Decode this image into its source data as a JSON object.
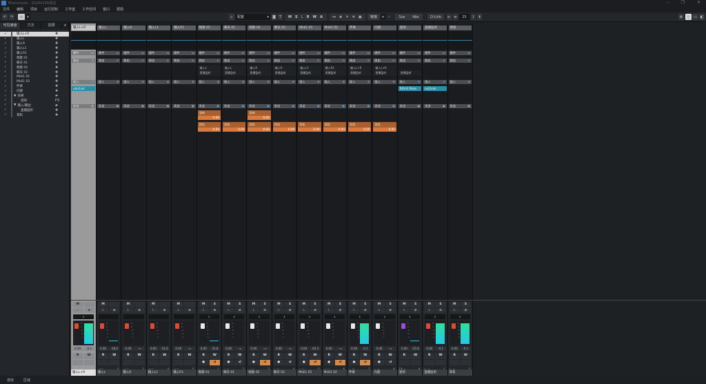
{
  "window": {
    "title": "MixConsole - 20260109测试",
    "controls": [
      "minimize",
      "maximize",
      "close"
    ]
  },
  "menu": [
    "文件",
    "编辑",
    "项目",
    "运行控制",
    "工作室",
    "工作空间",
    "窗口",
    "帮助"
  ],
  "toolbar": {
    "search_field": "配置",
    "ms_buttons": [
      "M",
      "S",
      "L",
      "R",
      "W",
      "A"
    ],
    "route_label": "链接",
    "sus": "Sus",
    "abs": "Abs",
    "qlink": "Q-Link",
    "zoom_value": "25"
  },
  "sidebar": {
    "tabs": [
      "可见通道",
      "方法",
      "插槽"
    ],
    "items": [
      {
        "label": "输入L+R",
        "selected": true,
        "icon": "input"
      },
      {
        "label": "输入L",
        "icon": "input"
      },
      {
        "label": "输入R",
        "icon": "input"
      },
      {
        "label": "输入L1",
        "icon": "input"
      },
      {
        "label": "输入R1",
        "icon": "input"
      },
      {
        "label": "唱歌 01",
        "icon": "input"
      },
      {
        "label": "聊天 01",
        "icon": "input"
      },
      {
        "label": "唱歌 02",
        "icon": "input"
      },
      {
        "label": "聊天 02",
        "icon": "input"
      },
      {
        "label": "Midi1 01",
        "icon": "input"
      },
      {
        "label": "Midi1 02",
        "icon": "input"
      },
      {
        "label": "伴奏",
        "icon": "input"
      },
      {
        "label": "闪避",
        "icon": "input"
      },
      {
        "label": "效果",
        "icon": "folder",
        "group": true
      },
      {
        "label": "混响",
        "icon": "FX",
        "indent": true
      },
      {
        "label": "输入/输出",
        "icon": "folder",
        "group": true
      },
      {
        "label": "直播监听",
        "icon": "input",
        "indent": true
      },
      {
        "label": "耳机",
        "icon": "input"
      }
    ],
    "bottom_tabs": [
      "通道",
      "区域"
    ]
  },
  "mixer": {
    "master_labels": {
      "hardware": "硬件",
      "route": "路由",
      "insert": "插入",
      "send": "发送"
    },
    "strips": [
      {
        "name": "输入L+R",
        "master": true,
        "plugin": "vdn2vst",
        "fader": "0.00",
        "meter": "-0.1",
        "cap": "#e04a33",
        "meter_full": true,
        "num": "1",
        "foot": "⊣ ∞"
      },
      {
        "name": "输入L",
        "fader": "0.00",
        "meter": "-28.0",
        "cap": "#e04a33",
        "line": true,
        "num": "2",
        "foot": "⊣ ○"
      },
      {
        "name": "输入R",
        "fader": "0.00",
        "meter": "-∞",
        "cap": "#e04a33",
        "num": "3",
        "foot": "⊣ ○"
      },
      {
        "name": "输入L1",
        "fader": "0.00",
        "meter": "-52.6",
        "cap": "#e04a33",
        "num": "4",
        "foot": "⊣ ○"
      },
      {
        "name": "输入R1",
        "fader": "0.00",
        "meter": "-∞",
        "cap": "#e04a33",
        "num": "5",
        "foot": "⊣ ○"
      },
      {
        "name": "唱歌 01",
        "io_in": "输入L",
        "io_out": "直播监听",
        "fader": "0.00",
        "meter": "-31.8",
        "cap": "#e8e8e8",
        "line": true,
        "write_on": true,
        "sends": [
          {
            "name": "混响",
            "value": "0.00"
          },
          {
            "name": "耳机",
            "value": "0.00"
          }
        ],
        "num": "1",
        "foot": "⊥ ○"
      },
      {
        "name": "聊天 01",
        "io_in": "输入L",
        "io_out": "直播监听",
        "fader": "0.00",
        "meter": "-∞",
        "cap": "#e8e8e8",
        "sends": [
          {
            "name": "耳机",
            "value": "0.00"
          }
        ],
        "num": "2",
        "foot": "⊥ ○"
      },
      {
        "name": "唱歌 02",
        "io_in": "输入R",
        "io_out": "直播监听",
        "fader": "0.00",
        "meter": "-∞",
        "cap": "#e8e8e8",
        "write_on": true,
        "sends": [
          {
            "name": "混响",
            "value": "0.00"
          },
          {
            "name": "耳机",
            "value": "0.00"
          }
        ],
        "num": "3",
        "foot": "⊥ ○"
      },
      {
        "name": "聊天 02",
        "io_in": "输入R",
        "io_out": "直播监听",
        "fader": "0.00",
        "meter": "-∞",
        "cap": "#e8e8e8",
        "sends": [
          {
            "name": "耳机",
            "value": "0.00"
          }
        ],
        "num": "4",
        "foot": "⊥ ○"
      },
      {
        "name": "Midi1 01",
        "io_in": "输入L1",
        "io_out": "直播监听",
        "fader": "0.00",
        "meter": "-62.5",
        "cap": "#e8e8e8",
        "write_on": true,
        "sends": [
          {
            "name": "耳机",
            "value": "0.00"
          }
        ],
        "num": "5",
        "foot": "⊥ ○"
      },
      {
        "name": "Midi1 02",
        "io_in": "输入R1",
        "io_out": "直播监听",
        "fader": "0.00",
        "meter": "-∞",
        "cap": "#e8e8e8",
        "write_on": true,
        "sends": [
          {
            "name": "耳机",
            "value": "0.00"
          }
        ],
        "num": "6",
        "foot": "⊥ ○"
      },
      {
        "name": "伴奏",
        "io_in": "输入L+R",
        "io_out": "直播监听",
        "fader": "0.00",
        "meter": "-0.1",
        "cap": "#e8e8e8",
        "meter_full": true,
        "write_on": true,
        "sends": [
          {
            "name": "耳机",
            "value": "0.00"
          }
        ],
        "num": "7",
        "foot": "⊥ ⊙"
      },
      {
        "name": "闪避",
        "io_in": "输入L+R",
        "io_out": "直播监听",
        "fader": "0.00",
        "meter": "-∞",
        "cap": "#e8e8e8",
        "sends": [
          {
            "name": "耳机",
            "value": "0.00"
          }
        ],
        "num": "8",
        "foot": "⊥ ∞"
      },
      {
        "name": "混响",
        "io_out": "直播监听",
        "plugin": "REV-X Plate",
        "fader": "0.00",
        "meter": "-25.6",
        "cap": "#9b4fd6",
        "line": true,
        "num": "9",
        "foot": "FX ∞"
      },
      {
        "name": "直播监听",
        "plugin": "vst2vdn",
        "fader": "0.00",
        "meter": "-0.1",
        "cap": "#e04a33",
        "meter_full": true,
        "num": "1",
        "foot": "⊢ ∞"
      },
      {
        "name": "耳机",
        "fader": "0.00",
        "meter": "-0.1",
        "cap": "#e04a33",
        "meter_full": true,
        "num": "2",
        "foot": "⊢ ∞"
      }
    ]
  },
  "fader_scale": [
    "6",
    "0",
    "-6",
    "-12",
    "-24",
    "-∞"
  ],
  "meter_scale": [
    "0",
    "12",
    "24",
    "48"
  ],
  "strip_labels": {
    "hardware": "硬件",
    "route": "路由",
    "insert": "插入",
    "send": "发送",
    "mute": "M",
    "solo": "S",
    "listen": "L",
    "read": "R",
    "write": "W"
  }
}
